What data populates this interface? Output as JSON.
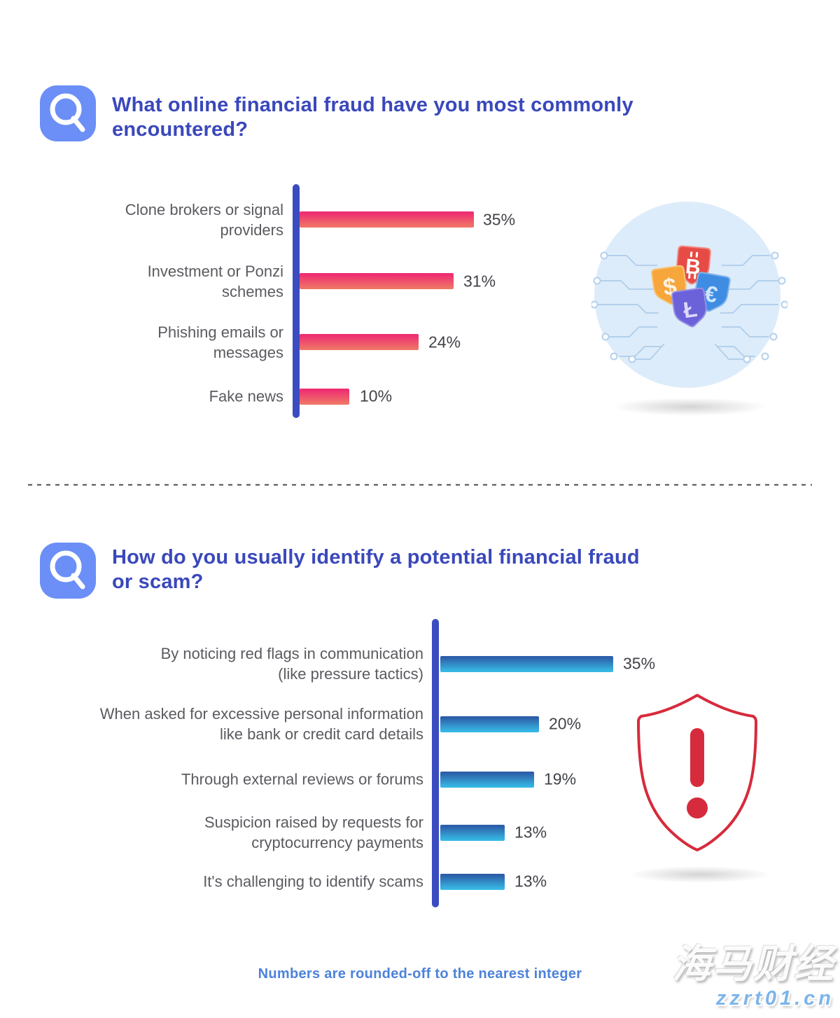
{
  "questions": [
    {
      "title": "What online financial fraud have you most commonly encountered?",
      "title_lines": [
        "What online financial fraud have you most commonly",
        "encountered?"
      ],
      "icon": "magnifier-q"
    },
    {
      "title": "How do you usually identify a potential financial fraud or scam?",
      "title_lines": [
        "How do you usually identify a potential financial fraud",
        "or scam?"
      ],
      "icon": "magnifier-q"
    }
  ],
  "chart_data": [
    {
      "type": "bar",
      "orientation": "horizontal",
      "title": "What online financial fraud have you most commonly encountered?",
      "categories": [
        "Clone brokers or signal providers",
        "Investment or Ponzi schemes",
        "Phishing emails or messages",
        "Fake news"
      ],
      "category_lines": [
        [
          "Clone brokers or signal",
          "providers"
        ],
        [
          "Investment or Ponzi",
          "schemes"
        ],
        [
          "Phishing emails or",
          "messages"
        ],
        [
          "Fake news"
        ]
      ],
      "values": [
        35,
        31,
        24,
        10
      ],
      "value_labels": [
        "35%",
        "31%",
        "24%",
        "10%"
      ],
      "unit": "percent",
      "xlim": [
        0,
        40
      ],
      "grid": false,
      "value_label_position": "end-of-bar",
      "axis_color": "#3a4cc0",
      "bar_gradient_top": "#ee2e72",
      "bar_gradient_bottom": "#ef7466"
    },
    {
      "type": "bar",
      "orientation": "horizontal",
      "title": "How do you usually identify a potential financial fraud or scam?",
      "categories": [
        "By noticing red flags in communication (like pressure tactics)",
        "When asked for excessive personal information like bank or credit card details",
        "Through external reviews or forums",
        "Suspicion raised by requests for cryptocurrency payments",
        "It's challenging to identify scams"
      ],
      "category_lines": [
        [
          "By noticing red flags in communication",
          "(like pressure tactics)"
        ],
        [
          "When asked for excessive personal information",
          "like bank or credit card details"
        ],
        [
          "Through external reviews or forums"
        ],
        [
          "Suspicion raised by requests for",
          "cryptocurrency payments"
        ],
        [
          "It's challenging to identify scams"
        ]
      ],
      "values": [
        35,
        20,
        19,
        13,
        13
      ],
      "value_labels": [
        "35%",
        "20%",
        "19%",
        "13%",
        "13%"
      ],
      "unit": "percent",
      "xlim": [
        0,
        40
      ],
      "grid": false,
      "value_label_position": "end-of-bar",
      "axis_color": "#3a4cc0",
      "bar_gradient_top": "#2d5fa9",
      "bar_gradient_bottom": "#36b7e3"
    }
  ],
  "illustrations": [
    {
      "name": "currency-shields-on-circuit",
      "background_color": "#ddecfa",
      "circuit_color": "#b3d0ec",
      "badges": [
        {
          "symbol": "$",
          "color": "#f6a63a"
        },
        {
          "symbol": "₿",
          "color": "#e64c45"
        },
        {
          "symbol": "€",
          "color": "#3f8de2"
        },
        {
          "symbol": "Ł",
          "color": "#6b61d9"
        }
      ]
    },
    {
      "name": "alert-shield",
      "symbol": "!",
      "color": "#d62b3c"
    }
  ],
  "footer": {
    "note": "Numbers are rounded-off to the nearest integer"
  },
  "watermark": {
    "line1": "海马财经",
    "line2": "zzrt01.cn"
  }
}
